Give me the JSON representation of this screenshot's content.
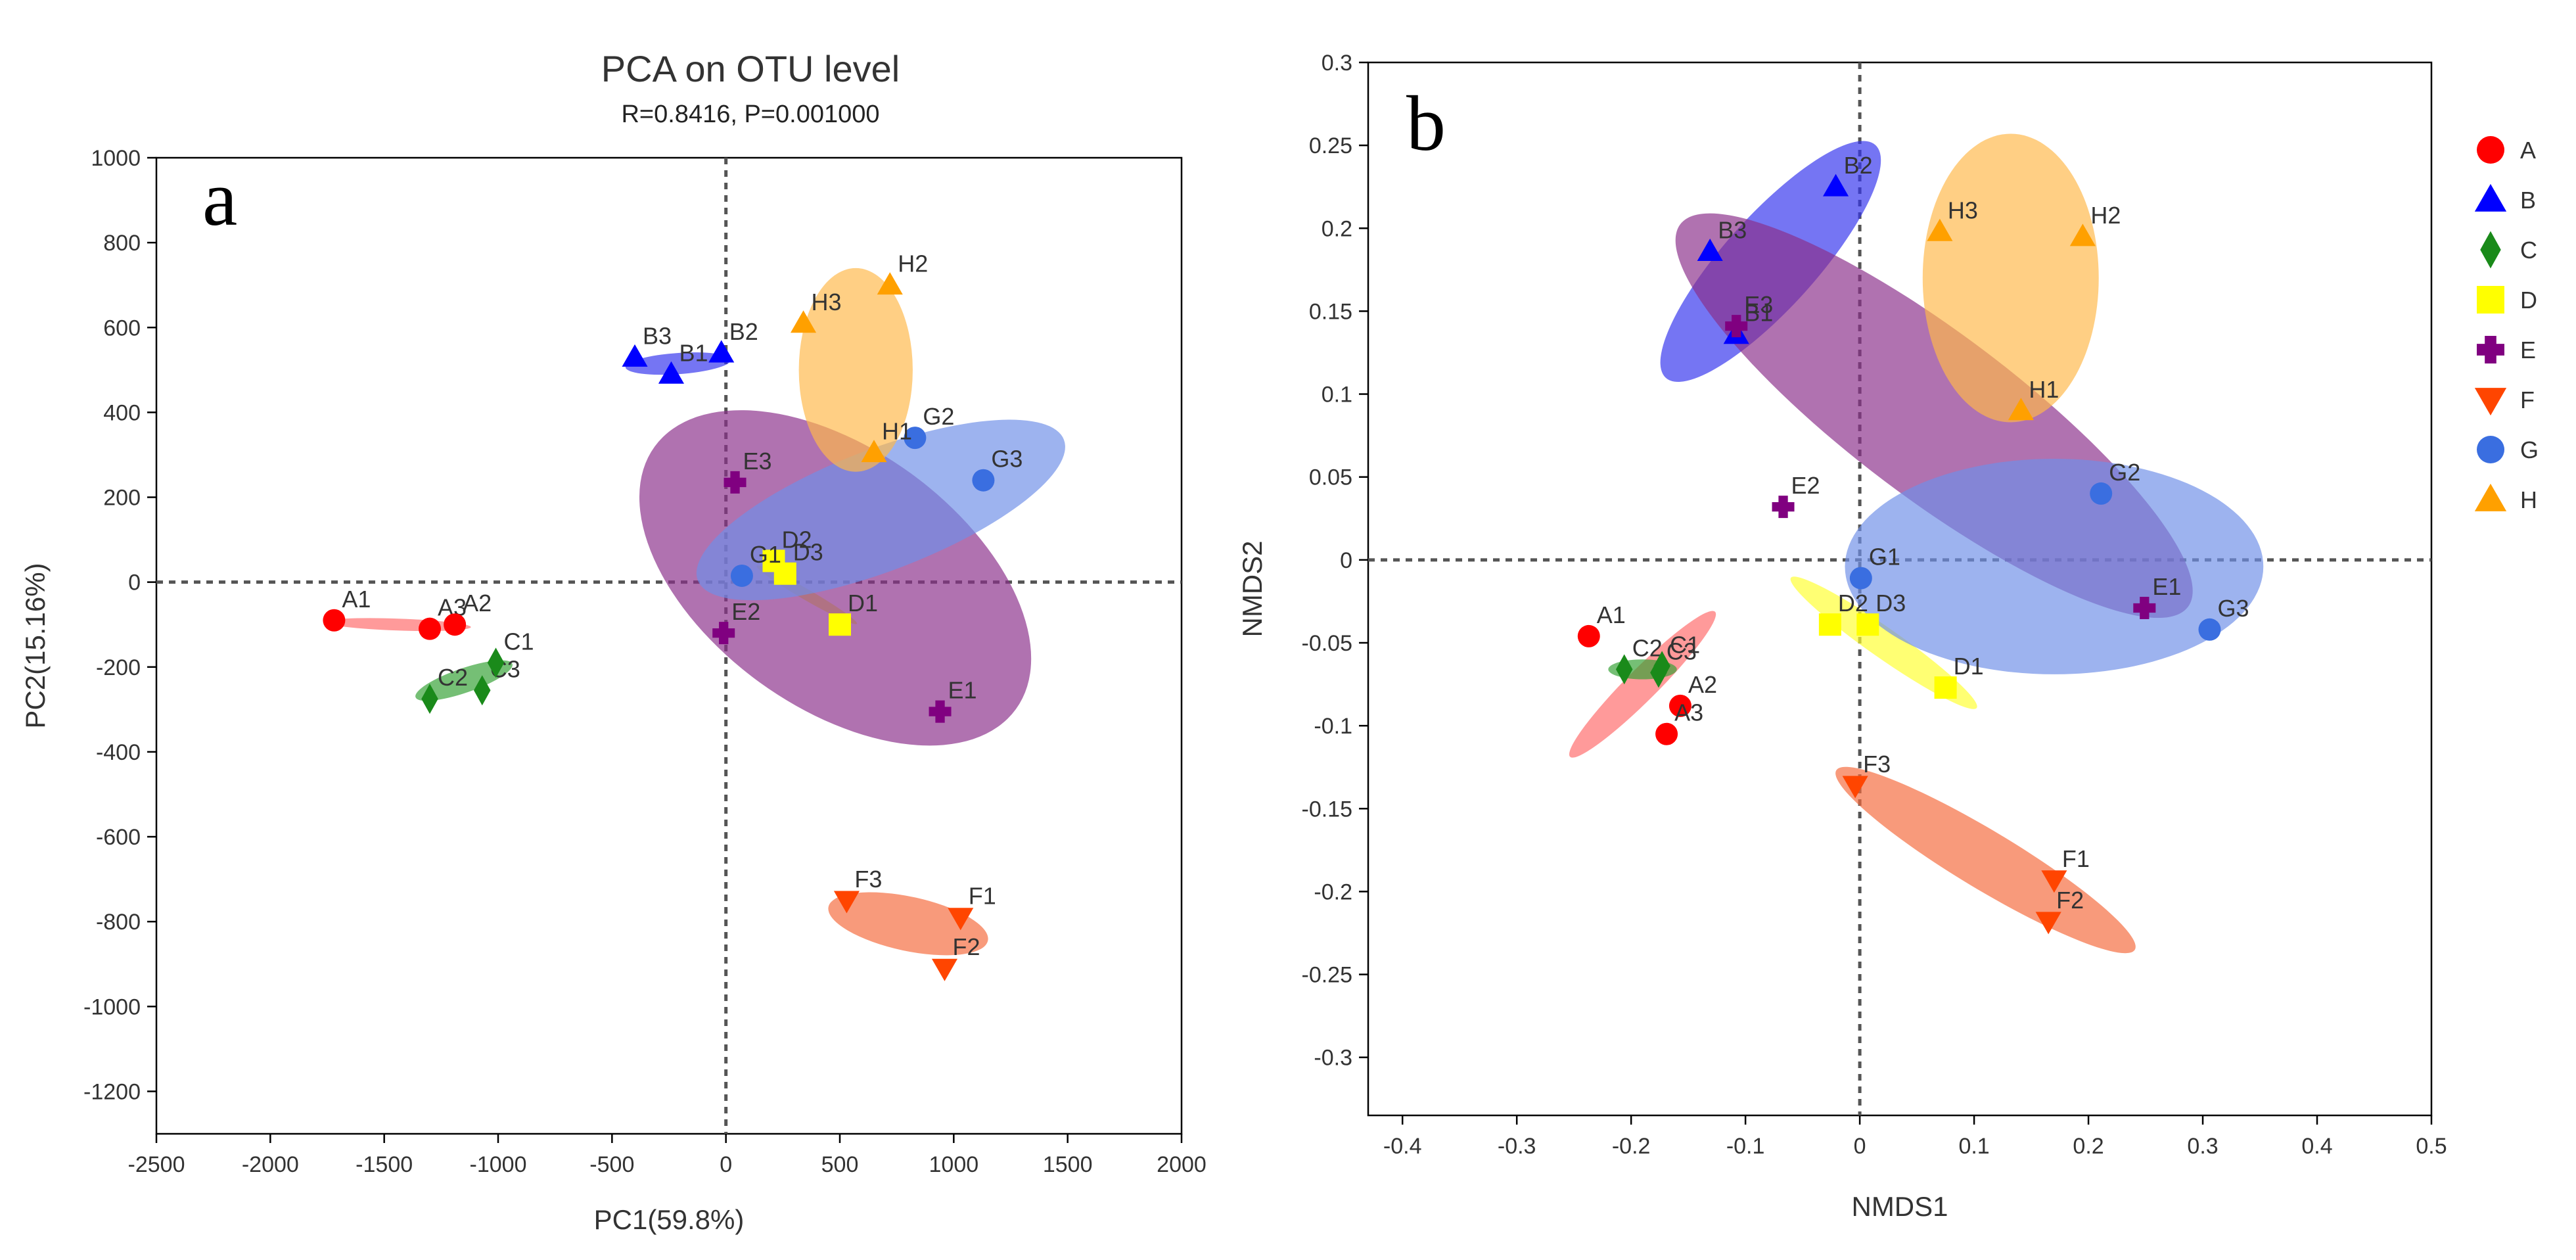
{
  "colors": {
    "A": "#ff0000",
    "B": "#0000ff",
    "C": "#1a8a1a",
    "D": "#ffff00",
    "E": "#800080",
    "F": "#ff4500",
    "G": "#3a6ee0",
    "H": "#ffa000"
  },
  "ellipse_colors": {
    "A": "#ff6a6a",
    "B": "#3333ee",
    "C": "#33a033",
    "D": "#ffff30",
    "E": "#8b2f8b",
    "F": "#f56a3c",
    "G": "#6f8fe8",
    "H": "#ffb84a"
  },
  "shapes": {
    "A": "circle",
    "B": "triangle-up",
    "C": "diamond",
    "D": "square",
    "E": "cross",
    "F": "triangle-down",
    "G": "circle",
    "H": "triangle-up"
  },
  "legend": {
    "items": [
      "A",
      "B",
      "C",
      "D",
      "E",
      "F",
      "G",
      "H"
    ]
  },
  "chart_data": [
    {
      "panel_label": "a",
      "type": "scatter",
      "title": "PCA on OTU level",
      "subtitle": "R=0.8416, P=0.001000",
      "xlabel": "PC1(59.8%)",
      "ylabel": "PC2(15.16%)",
      "xlim": [
        -2500,
        2000
      ],
      "ylim": [
        -1300,
        1000
      ],
      "xticks": [
        -2500,
        -2000,
        -1500,
        -1000,
        -500,
        0,
        500,
        1000,
        1500,
        2000
      ],
      "yticks": [
        -1200,
        -1000,
        -800,
        -600,
        -400,
        -200,
        0,
        200,
        400,
        600,
        800,
        1000
      ],
      "reference_lines": {
        "x": 0,
        "y": 0
      },
      "points": [
        {
          "label": "A1",
          "group": "A",
          "x": -1720,
          "y": -90
        },
        {
          "label": "A3",
          "group": "A",
          "x": -1300,
          "y": -110
        },
        {
          "label": "A2",
          "group": "A",
          "x": -1190,
          "y": -100
        },
        {
          "label": "B3",
          "group": "B",
          "x": -400,
          "y": 530
        },
        {
          "label": "B1",
          "group": "B",
          "x": -240,
          "y": 490
        },
        {
          "label": "B2",
          "group": "B",
          "x": -20,
          "y": 540
        },
        {
          "label": "C2",
          "group": "C",
          "x": -1300,
          "y": -275
        },
        {
          "label": "C3",
          "group": "C",
          "x": -1070,
          "y": -255
        },
        {
          "label": "C1",
          "group": "C",
          "x": -1010,
          "y": -190
        },
        {
          "label": "D2",
          "group": "D",
          "x": 210,
          "y": 50
        },
        {
          "label": "D3",
          "group": "D",
          "x": 260,
          "y": 20
        },
        {
          "label": "D1",
          "group": "D",
          "x": 500,
          "y": -100
        },
        {
          "label": "E3",
          "group": "E",
          "x": 40,
          "y": 235
        },
        {
          "label": "E2",
          "group": "E",
          "x": -10,
          "y": -120
        },
        {
          "label": "E1",
          "group": "E",
          "x": 940,
          "y": -305
        },
        {
          "label": "F3",
          "group": "F",
          "x": 530,
          "y": -750
        },
        {
          "label": "F1",
          "group": "F",
          "x": 1030,
          "y": -790
        },
        {
          "label": "F2",
          "group": "F",
          "x": 960,
          "y": -910
        },
        {
          "label": "G1",
          "group": "G",
          "x": 70,
          "y": 15
        },
        {
          "label": "G2",
          "group": "G",
          "x": 830,
          "y": 340
        },
        {
          "label": "G3",
          "group": "G",
          "x": 1130,
          "y": 240
        },
        {
          "label": "H3",
          "group": "H",
          "x": 340,
          "y": 610
        },
        {
          "label": "H2",
          "group": "H",
          "x": 720,
          "y": 700
        },
        {
          "label": "H1",
          "group": "H",
          "x": 650,
          "y": 305
        }
      ],
      "ellipses": [
        {
          "group": "A",
          "cx": -1440,
          "cy": -100,
          "rx": 320,
          "ry": 14,
          "angle": -2
        },
        {
          "group": "B",
          "cx": -210,
          "cy": 515,
          "rx": 230,
          "ry": 25,
          "angle": 4
        },
        {
          "group": "C",
          "cx": -1150,
          "cy": -232,
          "rx": 200,
          "ry": 30,
          "angle": 19
        },
        {
          "group": "D",
          "cx": 355,
          "cy": -30,
          "rx": 200,
          "ry": 14,
          "angle": -30
        },
        {
          "group": "E",
          "cx": 480,
          "cy": 10,
          "rx": 720,
          "ry": 350,
          "angle": -36
        },
        {
          "group": "F",
          "cx": 800,
          "cy": -805,
          "rx": 340,
          "ry": 65,
          "angle": -12
        },
        {
          "group": "G",
          "cx": 680,
          "cy": 170,
          "rx": 750,
          "ry": 150,
          "angle": 21
        },
        {
          "group": "H",
          "cx": 570,
          "cy": 500,
          "rx": 250,
          "ry": 240,
          "angle": 0
        }
      ]
    },
    {
      "panel_label": "b",
      "type": "scatter",
      "title": "",
      "xlabel": "NMDS1",
      "ylabel": "NMDS2",
      "xlim": [
        -0.43,
        0.5
      ],
      "ylim": [
        -0.335,
        0.3
      ],
      "xticks": [
        -0.4,
        -0.3,
        -0.2,
        -0.1,
        0,
        0.1,
        0.2,
        0.3,
        0.4,
        0.5
      ],
      "xtick_labels": [
        "-0.4",
        "-0.3",
        "-0.2",
        "-0.1",
        "0",
        "0.1",
        "0.2",
        "0.3",
        "0.4",
        "0.5"
      ],
      "yticks": [
        -0.3,
        -0.25,
        -0.2,
        -0.15,
        -0.1,
        -0.05,
        0,
        0.05,
        0.1,
        0.15,
        0.2,
        0.25,
        0.3
      ],
      "ytick_labels": [
        "-0.3",
        "-0.25",
        "-0.2",
        "-0.15",
        "-0.1",
        "-0.05",
        "0",
        "0.05",
        "0.1",
        "0.15",
        "0.2",
        "0.25",
        "0.3"
      ],
      "reference_lines": {
        "x": 0,
        "y": 0
      },
      "points": [
        {
          "label": "A1",
          "group": "A",
          "x": -0.237,
          "y": -0.046
        },
        {
          "label": "A2",
          "group": "A",
          "x": -0.157,
          "y": -0.088
        },
        {
          "label": "A3",
          "group": "A",
          "x": -0.169,
          "y": -0.105
        },
        {
          "label": "B2",
          "group": "B",
          "x": -0.021,
          "y": 0.225
        },
        {
          "label": "B3",
          "group": "B",
          "x": -0.131,
          "y": 0.186
        },
        {
          "label": "B1",
          "group": "B",
          "x": -0.108,
          "y": 0.136
        },
        {
          "label": "C2",
          "group": "C",
          "x": -0.206,
          "y": -0.066
        },
        {
          "label": "C3",
          "group": "C",
          "x": -0.176,
          "y": -0.068
        },
        {
          "label": "C1",
          "group": "C",
          "x": -0.173,
          "y": -0.064
        },
        {
          "label": "D2",
          "group": "D",
          "x": -0.026,
          "y": -0.039
        },
        {
          "label": "D3",
          "group": "D",
          "x": 0.007,
          "y": -0.039
        },
        {
          "label": "D1",
          "group": "D",
          "x": 0.075,
          "y": -0.077
        },
        {
          "label": "E3",
          "group": "E",
          "x": -0.108,
          "y": 0.141
        },
        {
          "label": "E2",
          "group": "E",
          "x": -0.067,
          "y": 0.032
        },
        {
          "label": "E1",
          "group": "E",
          "x": 0.249,
          "y": -0.029
        },
        {
          "label": "F3",
          "group": "F",
          "x": -0.004,
          "y": -0.136
        },
        {
          "label": "F1",
          "group": "F",
          "x": 0.17,
          "y": -0.193
        },
        {
          "label": "F2",
          "group": "F",
          "x": 0.165,
          "y": -0.218
        },
        {
          "label": "G1",
          "group": "G",
          "x": 0.001,
          "y": -0.011
        },
        {
          "label": "G2",
          "group": "G",
          "x": 0.211,
          "y": 0.04
        },
        {
          "label": "G3",
          "group": "G",
          "x": 0.306,
          "y": -0.042
        },
        {
          "label": "H3",
          "group": "H",
          "x": 0.07,
          "y": 0.198
        },
        {
          "label": "H2",
          "group": "H",
          "x": 0.195,
          "y": 0.195
        },
        {
          "label": "H1",
          "group": "H",
          "x": 0.141,
          "y": 0.09
        }
      ],
      "ellipses": [
        {
          "group": "A",
          "cx": -0.19,
          "cy": -0.075,
          "rx": 0.072,
          "ry": 0.011,
          "angle": 45
        },
        {
          "group": "B",
          "cx": -0.078,
          "cy": 0.18,
          "rx": 0.108,
          "ry": 0.033,
          "angle": 48
        },
        {
          "group": "C",
          "cx": -0.19,
          "cy": -0.066,
          "rx": 0.03,
          "ry": 0.006,
          "angle": 0
        },
        {
          "group": "D",
          "cx": 0.021,
          "cy": -0.05,
          "rx": 0.085,
          "ry": 0.01,
          "angle": -35
        },
        {
          "group": "E",
          "cx": 0.065,
          "cy": 0.087,
          "rx": 0.235,
          "ry": 0.055,
          "angle": -37
        },
        {
          "group": "F",
          "cx": 0.11,
          "cy": -0.181,
          "rx": 0.134,
          "ry": 0.019,
          "angle": -31
        },
        {
          "group": "G",
          "cx": 0.17,
          "cy": -0.004,
          "rx": 0.183,
          "ry": 0.065,
          "angle": 0
        },
        {
          "group": "H",
          "cx": 0.132,
          "cy": 0.17,
          "rx": 0.077,
          "ry": 0.087,
          "angle": 0
        }
      ]
    }
  ]
}
